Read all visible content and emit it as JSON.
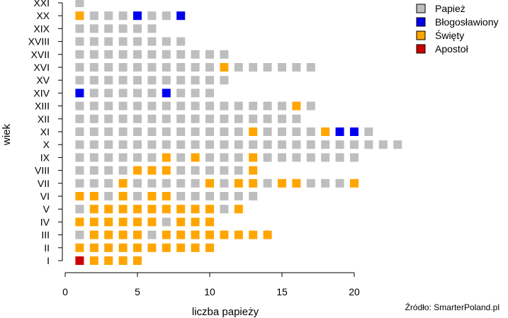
{
  "chart_data": {
    "type": "scatter",
    "title": "",
    "xlabel": "liczba papieży",
    "ylabel": "wiek",
    "xlim": [
      0,
      23.5
    ],
    "x_ticks": [
      0,
      5,
      10,
      15,
      20
    ],
    "source": "Źródło: SmarterPoland.pl",
    "grid": false,
    "legend_position": "top-right",
    "categories": [
      "I",
      "II",
      "III",
      "IV",
      "V",
      "VI",
      "VII",
      "VIII",
      "IX",
      "X",
      "XI",
      "XII",
      "XIII",
      "XIV",
      "XV",
      "XVI",
      "XVII",
      "XVIII",
      "XIX",
      "XX",
      "XXI"
    ],
    "status_colors": {
      "P": "#bebebe",
      "B": "#0000ee",
      "S": "#ffa500",
      "A": "#cd0000"
    },
    "series": [
      {
        "name": "Papież",
        "color": "#bebebe"
      },
      {
        "name": "Błogosławiony",
        "color": "#0000ee"
      },
      {
        "name": "Święty",
        "color": "#ffa500"
      },
      {
        "name": "Apostoł",
        "color": "#cd0000"
      }
    ],
    "centuries": [
      {
        "century": "I",
        "popes": [
          "A",
          "S",
          "S",
          "S",
          "S"
        ]
      },
      {
        "century": "II",
        "popes": [
          "S",
          "S",
          "S",
          "S",
          "S",
          "S",
          "S",
          "S",
          "S",
          "S"
        ]
      },
      {
        "century": "III",
        "popes": [
          "P",
          "S",
          "S",
          "S",
          "S",
          "P",
          "S",
          "S",
          "S",
          "S",
          "S",
          "S",
          "S",
          "S"
        ]
      },
      {
        "century": "IV",
        "popes": [
          "S",
          "S",
          "S",
          "S",
          "S",
          "S",
          "P",
          "S",
          "S",
          "S"
        ]
      },
      {
        "century": "V",
        "popes": [
          "P",
          "S",
          "S",
          "S",
          "S",
          "S",
          "S",
          "S",
          "S",
          "S",
          "P",
          "S"
        ]
      },
      {
        "century": "VI",
        "popes": [
          "S",
          "S",
          "P",
          "S",
          "P",
          "S",
          "S",
          "P",
          "P",
          "P",
          "P",
          "P",
          "P"
        ]
      },
      {
        "century": "VII",
        "popes": [
          "P",
          "P",
          "P",
          "S",
          "P",
          "P",
          "P",
          "P",
          "P",
          "S",
          "P",
          "S",
          "S",
          "P",
          "S",
          "S",
          "P",
          "P",
          "P",
          "S"
        ]
      },
      {
        "century": "VIII",
        "popes": [
          "P",
          "P",
          "P",
          "P",
          "S",
          "S",
          "S",
          "P",
          "P",
          "P",
          "P",
          "P",
          "S"
        ]
      },
      {
        "century": "IX",
        "popes": [
          "P",
          "P",
          "P",
          "P",
          "P",
          "P",
          "S",
          "P",
          "S",
          "P",
          "P",
          "P",
          "S",
          "P",
          "P",
          "P",
          "P",
          "P",
          "P",
          "P"
        ]
      },
      {
        "century": "X",
        "popes": [
          "P",
          "P",
          "P",
          "P",
          "P",
          "P",
          "P",
          "P",
          "P",
          "P",
          "P",
          "P",
          "P",
          "P",
          "P",
          "P",
          "P",
          "P",
          "P",
          "P",
          "P",
          "P",
          "P"
        ]
      },
      {
        "century": "XI",
        "popes": [
          "P",
          "P",
          "P",
          "P",
          "P",
          "P",
          "P",
          "P",
          "P",
          "P",
          "P",
          "P",
          "S",
          "P",
          "P",
          "P",
          "P",
          "S",
          "B",
          "B",
          "P"
        ]
      },
      {
        "century": "XII",
        "popes": [
          "P",
          "P",
          "P",
          "P",
          "P",
          "P",
          "P",
          "P",
          "P",
          "P",
          "P",
          "P",
          "P",
          "P",
          "P",
          "P"
        ]
      },
      {
        "century": "XIII",
        "popes": [
          "P",
          "P",
          "P",
          "P",
          "P",
          "P",
          "P",
          "P",
          "P",
          "P",
          "P",
          "P",
          "P",
          "P",
          "P",
          "S",
          "P"
        ]
      },
      {
        "century": "XIV",
        "popes": [
          "B",
          "P",
          "P",
          "P",
          "P",
          "P",
          "B",
          "P",
          "P",
          "P"
        ]
      },
      {
        "century": "XV",
        "popes": [
          "P",
          "P",
          "P",
          "P",
          "P",
          "P",
          "P",
          "P",
          "P",
          "P",
          "P"
        ]
      },
      {
        "century": "XVI",
        "popes": [
          "P",
          "P",
          "P",
          "P",
          "P",
          "P",
          "P",
          "P",
          "P",
          "P",
          "S",
          "P",
          "P",
          "P",
          "P",
          "P",
          "P"
        ]
      },
      {
        "century": "XVII",
        "popes": [
          "P",
          "P",
          "P",
          "P",
          "P",
          "P",
          "P",
          "P",
          "P",
          "P",
          "P"
        ]
      },
      {
        "century": "XVIII",
        "popes": [
          "P",
          "P",
          "P",
          "P",
          "P",
          "P",
          "P",
          "P"
        ]
      },
      {
        "century": "XIX",
        "popes": [
          "P",
          "P",
          "P",
          "P",
          "P",
          "P"
        ]
      },
      {
        "century": "XX",
        "popes": [
          "S",
          "P",
          "P",
          "P",
          "B",
          "P",
          "P",
          "B"
        ]
      },
      {
        "century": "XXI",
        "popes": [
          "P"
        ]
      }
    ]
  }
}
